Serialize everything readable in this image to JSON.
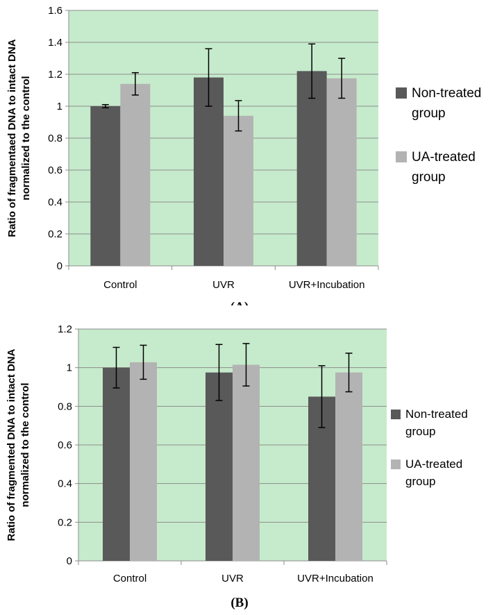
{
  "chart_data": [
    {
      "type": "bar",
      "caption": "(A)",
      "categories": [
        "Control",
        "UVR",
        "UVR+Incubation"
      ],
      "series": [
        {
          "name": "Non-treated group",
          "values": [
            1.0,
            1.18,
            1.22
          ],
          "errors": [
            0.01,
            0.18,
            0.17
          ],
          "color": "#595959"
        },
        {
          "name": "UA-treated group",
          "values": [
            1.14,
            0.94,
            1.175
          ],
          "errors": [
            0.07,
            0.095,
            0.125
          ],
          "color": "#b3b3b3"
        }
      ],
      "ylabel_lines": [
        "Ratio of fragmentaed DNA to intact DNA",
        "normalized to the control"
      ],
      "ylim": [
        0,
        1.6
      ],
      "yticks": [
        "0",
        "0.2",
        "0.4",
        "0.6",
        "0.8",
        "1",
        "1.2",
        "1.4",
        "1.6"
      ],
      "grid": true,
      "plot_bg": "#c6ebcc",
      "legend_position": "right",
      "legend_lines": [
        [
          "Non-treated",
          "group"
        ],
        [
          "UA-treated",
          "group"
        ]
      ]
    },
    {
      "type": "bar",
      "caption": "(B)",
      "categories": [
        "Control",
        "UVR",
        "UVR+Incubation"
      ],
      "series": [
        {
          "name": "Non-treated group",
          "values": [
            1.0,
            0.975,
            0.85
          ],
          "errors": [
            0.105,
            0.145,
            0.16
          ],
          "color": "#595959"
        },
        {
          "name": "UA-treated group",
          "values": [
            1.028,
            1.015,
            0.975
          ],
          "errors": [
            0.088,
            0.11,
            0.1
          ],
          "color": "#b3b3b3"
        }
      ],
      "ylabel_lines": [
        "Ratio of fragmented DNA to intact DNA",
        "normalized to the control"
      ],
      "ylim": [
        0,
        1.2
      ],
      "yticks": [
        "0",
        "0.2",
        "0.4",
        "0.6",
        "0.8",
        "1",
        "1.2"
      ],
      "grid": true,
      "plot_bg": "#c6ebcc",
      "legend_position": "right",
      "legend_lines": [
        [
          "Non-treated",
          "group"
        ],
        [
          "UA-treated",
          "group"
        ]
      ]
    }
  ]
}
